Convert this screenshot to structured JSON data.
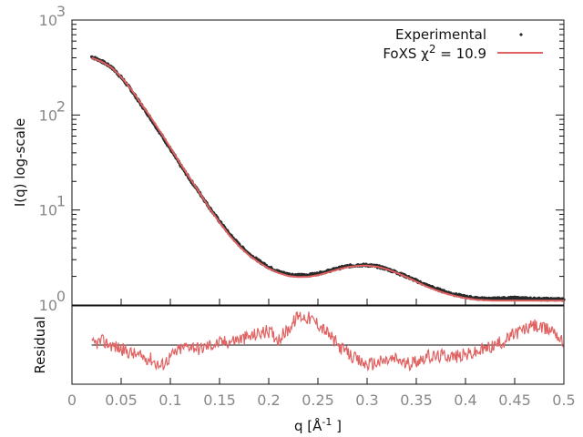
{
  "chart_data": {
    "type": "line",
    "title": "",
    "xlabel": {
      "base": "q [Å",
      "sup": "-1",
      "close": " ]"
    },
    "ylabel": "I(q) log-scale",
    "residual_ylabel": "Residual",
    "xlim": [
      0,
      0.5
    ],
    "ylim": [
      1,
      1000
    ],
    "yscale": "log",
    "grid": false,
    "legend_position": "top-right",
    "x_ticks": [
      "0",
      "0.05",
      "0.1",
      "0.15",
      "0.2",
      "0.25",
      "0.3",
      "0.35",
      "0.4",
      "0.45",
      "0.5"
    ],
    "y_ticks": [
      {
        "value": 1,
        "base": "10",
        "exp": "0"
      },
      {
        "value": 10,
        "base": "10",
        "exp": "1"
      },
      {
        "value": 100,
        "base": "10",
        "exp": "2"
      },
      {
        "value": 1000,
        "base": "10",
        "exp": "3"
      }
    ],
    "series": [
      {
        "name": "Experimental",
        "style": "points",
        "color": "#2a2a2a",
        "x": [
          0.02,
          0.03,
          0.04,
          0.05,
          0.06,
          0.07,
          0.08,
          0.09,
          0.1,
          0.11,
          0.12,
          0.13,
          0.14,
          0.15,
          0.16,
          0.17,
          0.18,
          0.19,
          0.2,
          0.21,
          0.22,
          0.23,
          0.24,
          0.25,
          0.26,
          0.27,
          0.28,
          0.29,
          0.3,
          0.31,
          0.32,
          0.33,
          0.34,
          0.35,
          0.36,
          0.37,
          0.38,
          0.39,
          0.4,
          0.41,
          0.42,
          0.43,
          0.44,
          0.45,
          0.46,
          0.47,
          0.48,
          0.49,
          0.5
        ],
        "y": [
          410,
          370,
          320,
          250,
          185,
          130,
          92,
          64,
          44,
          30,
          21,
          15,
          10.5,
          7.6,
          5.6,
          4.3,
          3.45,
          2.9,
          2.5,
          2.24,
          2.1,
          2.05,
          2.06,
          2.14,
          2.27,
          2.42,
          2.56,
          2.63,
          2.63,
          2.55,
          2.4,
          2.2,
          2.0,
          1.8,
          1.62,
          1.48,
          1.37,
          1.28,
          1.22,
          1.18,
          1.16,
          1.16,
          1.17,
          1.18,
          1.17,
          1.16,
          1.15,
          1.15,
          1.14
        ]
      },
      {
        "name": "FoXS",
        "legend_label": {
          "prefix": "FoXS ",
          "chi": "χ",
          "sup": "2",
          "suffix": " = 10.9"
        },
        "style": "line",
        "color": "#e06262",
        "x": [
          0.02,
          0.03,
          0.04,
          0.05,
          0.06,
          0.07,
          0.08,
          0.09,
          0.1,
          0.11,
          0.12,
          0.13,
          0.14,
          0.15,
          0.16,
          0.17,
          0.18,
          0.19,
          0.2,
          0.21,
          0.22,
          0.23,
          0.24,
          0.25,
          0.26,
          0.27,
          0.28,
          0.29,
          0.3,
          0.31,
          0.32,
          0.33,
          0.34,
          0.35,
          0.36,
          0.37,
          0.38,
          0.39,
          0.4,
          0.41,
          0.42,
          0.43,
          0.44,
          0.45,
          0.46,
          0.47,
          0.48,
          0.49,
          0.5
        ],
        "y": [
          400,
          365,
          318,
          252,
          188,
          133,
          95,
          66,
          45.5,
          31,
          21.5,
          15,
          10.3,
          7.4,
          5.4,
          4.15,
          3.33,
          2.8,
          2.42,
          2.17,
          2.02,
          1.97,
          1.98,
          2.06,
          2.2,
          2.36,
          2.5,
          2.58,
          2.6,
          2.53,
          2.38,
          2.18,
          1.97,
          1.76,
          1.57,
          1.43,
          1.32,
          1.24,
          1.18,
          1.14,
          1.12,
          1.11,
          1.11,
          1.11,
          1.11,
          1.11,
          1.11,
          1.11,
          1.11
        ]
      }
    ],
    "residual": {
      "color": "#e06262",
      "ylim": [
        -1,
        1
      ],
      "baseline": 0,
      "x": [
        0.02,
        0.03,
        0.04,
        0.05,
        0.06,
        0.07,
        0.08,
        0.09,
        0.1,
        0.11,
        0.12,
        0.13,
        0.14,
        0.15,
        0.16,
        0.17,
        0.18,
        0.19,
        0.2,
        0.21,
        0.22,
        0.23,
        0.24,
        0.25,
        0.26,
        0.27,
        0.28,
        0.29,
        0.3,
        0.31,
        0.32,
        0.33,
        0.34,
        0.35,
        0.36,
        0.37,
        0.38,
        0.39,
        0.4,
        0.41,
        0.42,
        0.43,
        0.44,
        0.45,
        0.46,
        0.47,
        0.48,
        0.49,
        0.5
      ],
      "y": [
        0.0,
        0.1,
        0.0,
        -0.1,
        -0.2,
        -0.3,
        -0.35,
        -0.55,
        -0.3,
        -0.1,
        0.0,
        -0.1,
        0.0,
        0.05,
        0.1,
        0.15,
        0.2,
        0.3,
        0.35,
        0.15,
        0.4,
        0.75,
        0.7,
        0.55,
        0.3,
        0.0,
        -0.2,
        -0.4,
        -0.5,
        -0.45,
        -0.4,
        -0.35,
        -0.5,
        -0.4,
        -0.3,
        -0.3,
        -0.25,
        -0.3,
        -0.25,
        -0.2,
        -0.1,
        0.0,
        0.1,
        0.3,
        0.4,
        0.5,
        0.4,
        0.4,
        0.0
      ]
    }
  }
}
